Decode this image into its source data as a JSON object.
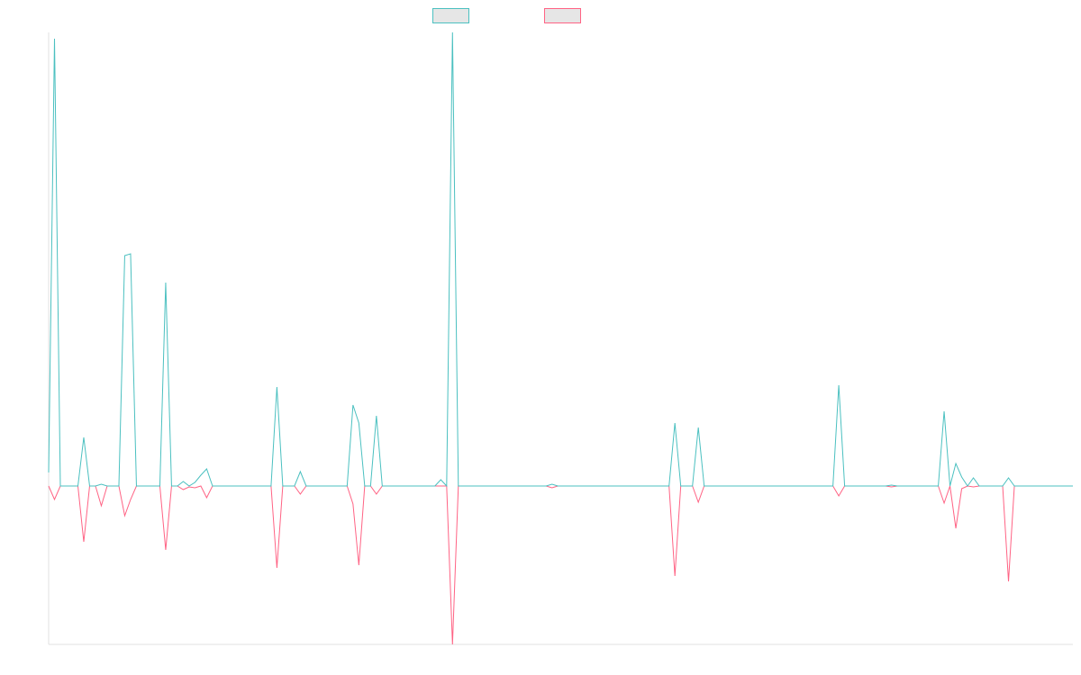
{
  "chart_data": {
    "type": "line",
    "ylim": [
      -176,
      504
    ],
    "series": [
      {
        "color": "#4bc0c0",
        "values": [
          15,
          497,
          0,
          0,
          0,
          0,
          54,
          0,
          0,
          2,
          0,
          0,
          0,
          256,
          258,
          0,
          0,
          0,
          0,
          0,
          226,
          0,
          0,
          5,
          0,
          4,
          12,
          19,
          0,
          0,
          0,
          0,
          0,
          0,
          0,
          0,
          0,
          0,
          0,
          110,
          0,
          0,
          0,
          16,
          0,
          0,
          0,
          0,
          0,
          0,
          0,
          0,
          90,
          70,
          0,
          0,
          78,
          0,
          0,
          0,
          0,
          0,
          0,
          0,
          0,
          0,
          0,
          7,
          0,
          504,
          0,
          0,
          0,
          0,
          0,
          0,
          0,
          0,
          0,
          0,
          0,
          0,
          0,
          0,
          0,
          0,
          2,
          0,
          0,
          0,
          0,
          0,
          0,
          0,
          0,
          0,
          0,
          0,
          0,
          0,
          0,
          0,
          0,
          0,
          0,
          0,
          0,
          70,
          0,
          0,
          0,
          65,
          0,
          0,
          0,
          0,
          0,
          0,
          0,
          0,
          0,
          0,
          0,
          0,
          0,
          0,
          0,
          0,
          0,
          0,
          0,
          0,
          0,
          0,
          0,
          112,
          0,
          0,
          0,
          0,
          0,
          0,
          0,
          0,
          1,
          0,
          0,
          0,
          0,
          0,
          0,
          0,
          0,
          83,
          0,
          25,
          10,
          0,
          9,
          0,
          0,
          0,
          0,
          0,
          9,
          0,
          0,
          0,
          0,
          0,
          0,
          0,
          0,
          0,
          0,
          0
        ]
      },
      {
        "color": "#ff6384",
        "values": [
          0,
          -15,
          0,
          0,
          0,
          0,
          -62,
          0,
          0,
          -22,
          0,
          0,
          0,
          -33,
          -15,
          0,
          0,
          0,
          0,
          0,
          -71,
          0,
          0,
          -4,
          -1,
          -2,
          0,
          -13,
          0,
          0,
          0,
          0,
          0,
          0,
          0,
          0,
          0,
          0,
          0,
          -91,
          0,
          0,
          0,
          -9,
          0,
          0,
          0,
          0,
          0,
          0,
          0,
          0,
          -20,
          -88,
          0,
          0,
          -9,
          0,
          0,
          0,
          0,
          0,
          0,
          0,
          0,
          0,
          0,
          0,
          0,
          -176,
          0,
          0,
          0,
          0,
          0,
          0,
          0,
          0,
          0,
          0,
          0,
          0,
          0,
          0,
          0,
          0,
          -2,
          0,
          0,
          0,
          0,
          0,
          0,
          0,
          0,
          0,
          0,
          0,
          0,
          0,
          0,
          0,
          0,
          0,
          0,
          0,
          0,
          -100,
          0,
          0,
          0,
          -18,
          0,
          0,
          0,
          0,
          0,
          0,
          0,
          0,
          0,
          0,
          0,
          0,
          0,
          0,
          0,
          0,
          0,
          0,
          0,
          0,
          0,
          0,
          0,
          -11,
          0,
          0,
          0,
          0,
          0,
          0,
          0,
          0,
          -1,
          0,
          0,
          0,
          0,
          0,
          0,
          0,
          0,
          -19,
          0,
          -47,
          -3,
          0,
          -1,
          0,
          0,
          0,
          0,
          0,
          -106,
          0,
          0,
          0,
          0,
          0,
          0,
          0,
          0,
          0,
          0,
          0
        ]
      }
    ]
  }
}
